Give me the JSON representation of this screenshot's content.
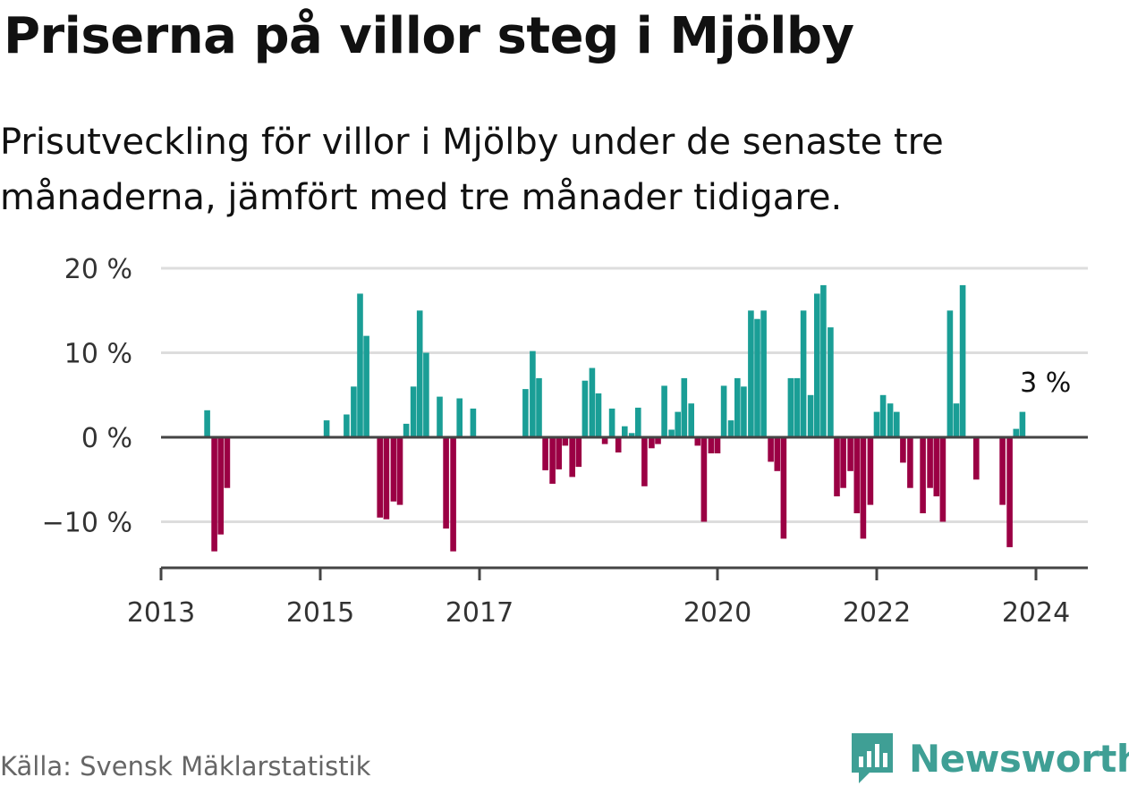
{
  "title": "Priserna på villor steg i Mjölby",
  "subtitle": "Prisutveckling för villor i Mjölby under de senaste tre månaderna, jämfört med tre månader tidigare.",
  "source": "Källa: Svensk Mäklarstatistik",
  "brand": "Newsworthy",
  "colors": {
    "positive": "#1a9e96",
    "negative": "#9b0044",
    "grid": "#dddddd",
    "axis": "#444444",
    "brand": "#3f9f95"
  },
  "chart_data": {
    "type": "bar",
    "title": "Priserna på villor steg i Mjölby",
    "xlabel": "",
    "ylabel": "",
    "ylim": [
      -15.5,
      20
    ],
    "xlim": [
      2013,
      2024.33
    ],
    "y_ticks": [
      20,
      10,
      0,
      -10
    ],
    "y_tick_labels": [
      "20 %",
      "10 %",
      "0 %",
      "−10 %"
    ],
    "x_ticks": [
      2013,
      2015,
      2017,
      2020,
      2022,
      2024
    ],
    "x_tick_labels": [
      "2013",
      "2015",
      "2017",
      "2020",
      "2022",
      "2024"
    ],
    "annotation": {
      "label": "3 %",
      "x": 2024.08,
      "y": 3
    },
    "series": [
      {
        "name": "Prisutveckling",
        "x": [
          2013.58,
          2013.67,
          2013.75,
          2013.83,
          2015.08,
          2015.33,
          2015.42,
          2015.5,
          2015.58,
          2015.75,
          2015.83,
          2015.92,
          2016.0,
          2016.08,
          2016.17,
          2016.25,
          2016.33,
          2016.5,
          2016.58,
          2016.67,
          2016.75,
          2016.92,
          2017.58,
          2017.67,
          2017.75,
          2017.83,
          2017.92,
          2018.0,
          2018.08,
          2018.17,
          2018.25,
          2018.33,
          2018.42,
          2018.5,
          2018.58,
          2018.67,
          2018.75,
          2018.83,
          2018.92,
          2019.0,
          2019.08,
          2019.17,
          2019.25,
          2019.33,
          2019.42,
          2019.5,
          2019.58,
          2019.67,
          2019.75,
          2019.83,
          2019.92,
          2020.0,
          2020.08,
          2020.17,
          2020.25,
          2020.33,
          2020.42,
          2020.5,
          2020.58,
          2020.67,
          2020.75,
          2020.83,
          2020.92,
          2021.0,
          2021.08,
          2021.17,
          2021.25,
          2021.33,
          2021.42,
          2021.5,
          2021.58,
          2021.67,
          2021.75,
          2021.83,
          2021.92,
          2022.0,
          2022.08,
          2022.17,
          2022.25,
          2022.33,
          2022.42,
          2022.58,
          2022.67,
          2022.75,
          2022.83,
          2022.92,
          2023.0,
          2023.08,
          2023.25,
          2023.58,
          2023.67,
          2023.75,
          2023.83,
          2023.92,
          2024.0,
          2024.08
        ]
      }
    ],
    "values": [
      3.2,
      -13.5,
      -11.5,
      -6,
      2,
      2.7,
      6,
      17,
      12,
      -9.5,
      -9.7,
      -7.6,
      -8,
      1.6,
      6,
      15,
      10,
      4.8,
      -10.8,
      -13.5,
      4.6,
      3.4,
      5.7,
      10.2,
      7,
      -3.9,
      -5.5,
      -3.8,
      -1,
      -4.7,
      -3.5,
      6.7,
      8.2,
      5.2,
      -0.8,
      3.4,
      -1.8,
      1.3,
      0.5,
      3.5,
      -5.8,
      -1.3,
      -0.8,
      6.1,
      0.9,
      3,
      7,
      4,
      -1,
      -10,
      -1.9,
      -1.9,
      6.1,
      2,
      7,
      6,
      15,
      14,
      15,
      -2.9,
      -4,
      -12,
      7,
      7,
      15,
      5,
      17,
      18,
      13,
      -7,
      -6,
      -4,
      -9,
      -12,
      -8,
      3,
      5,
      4,
      3,
      -3,
      -6,
      -9,
      -6,
      -7,
      -10,
      15,
      4,
      18,
      -5,
      -8,
      -13,
      1,
      3
    ]
  }
}
